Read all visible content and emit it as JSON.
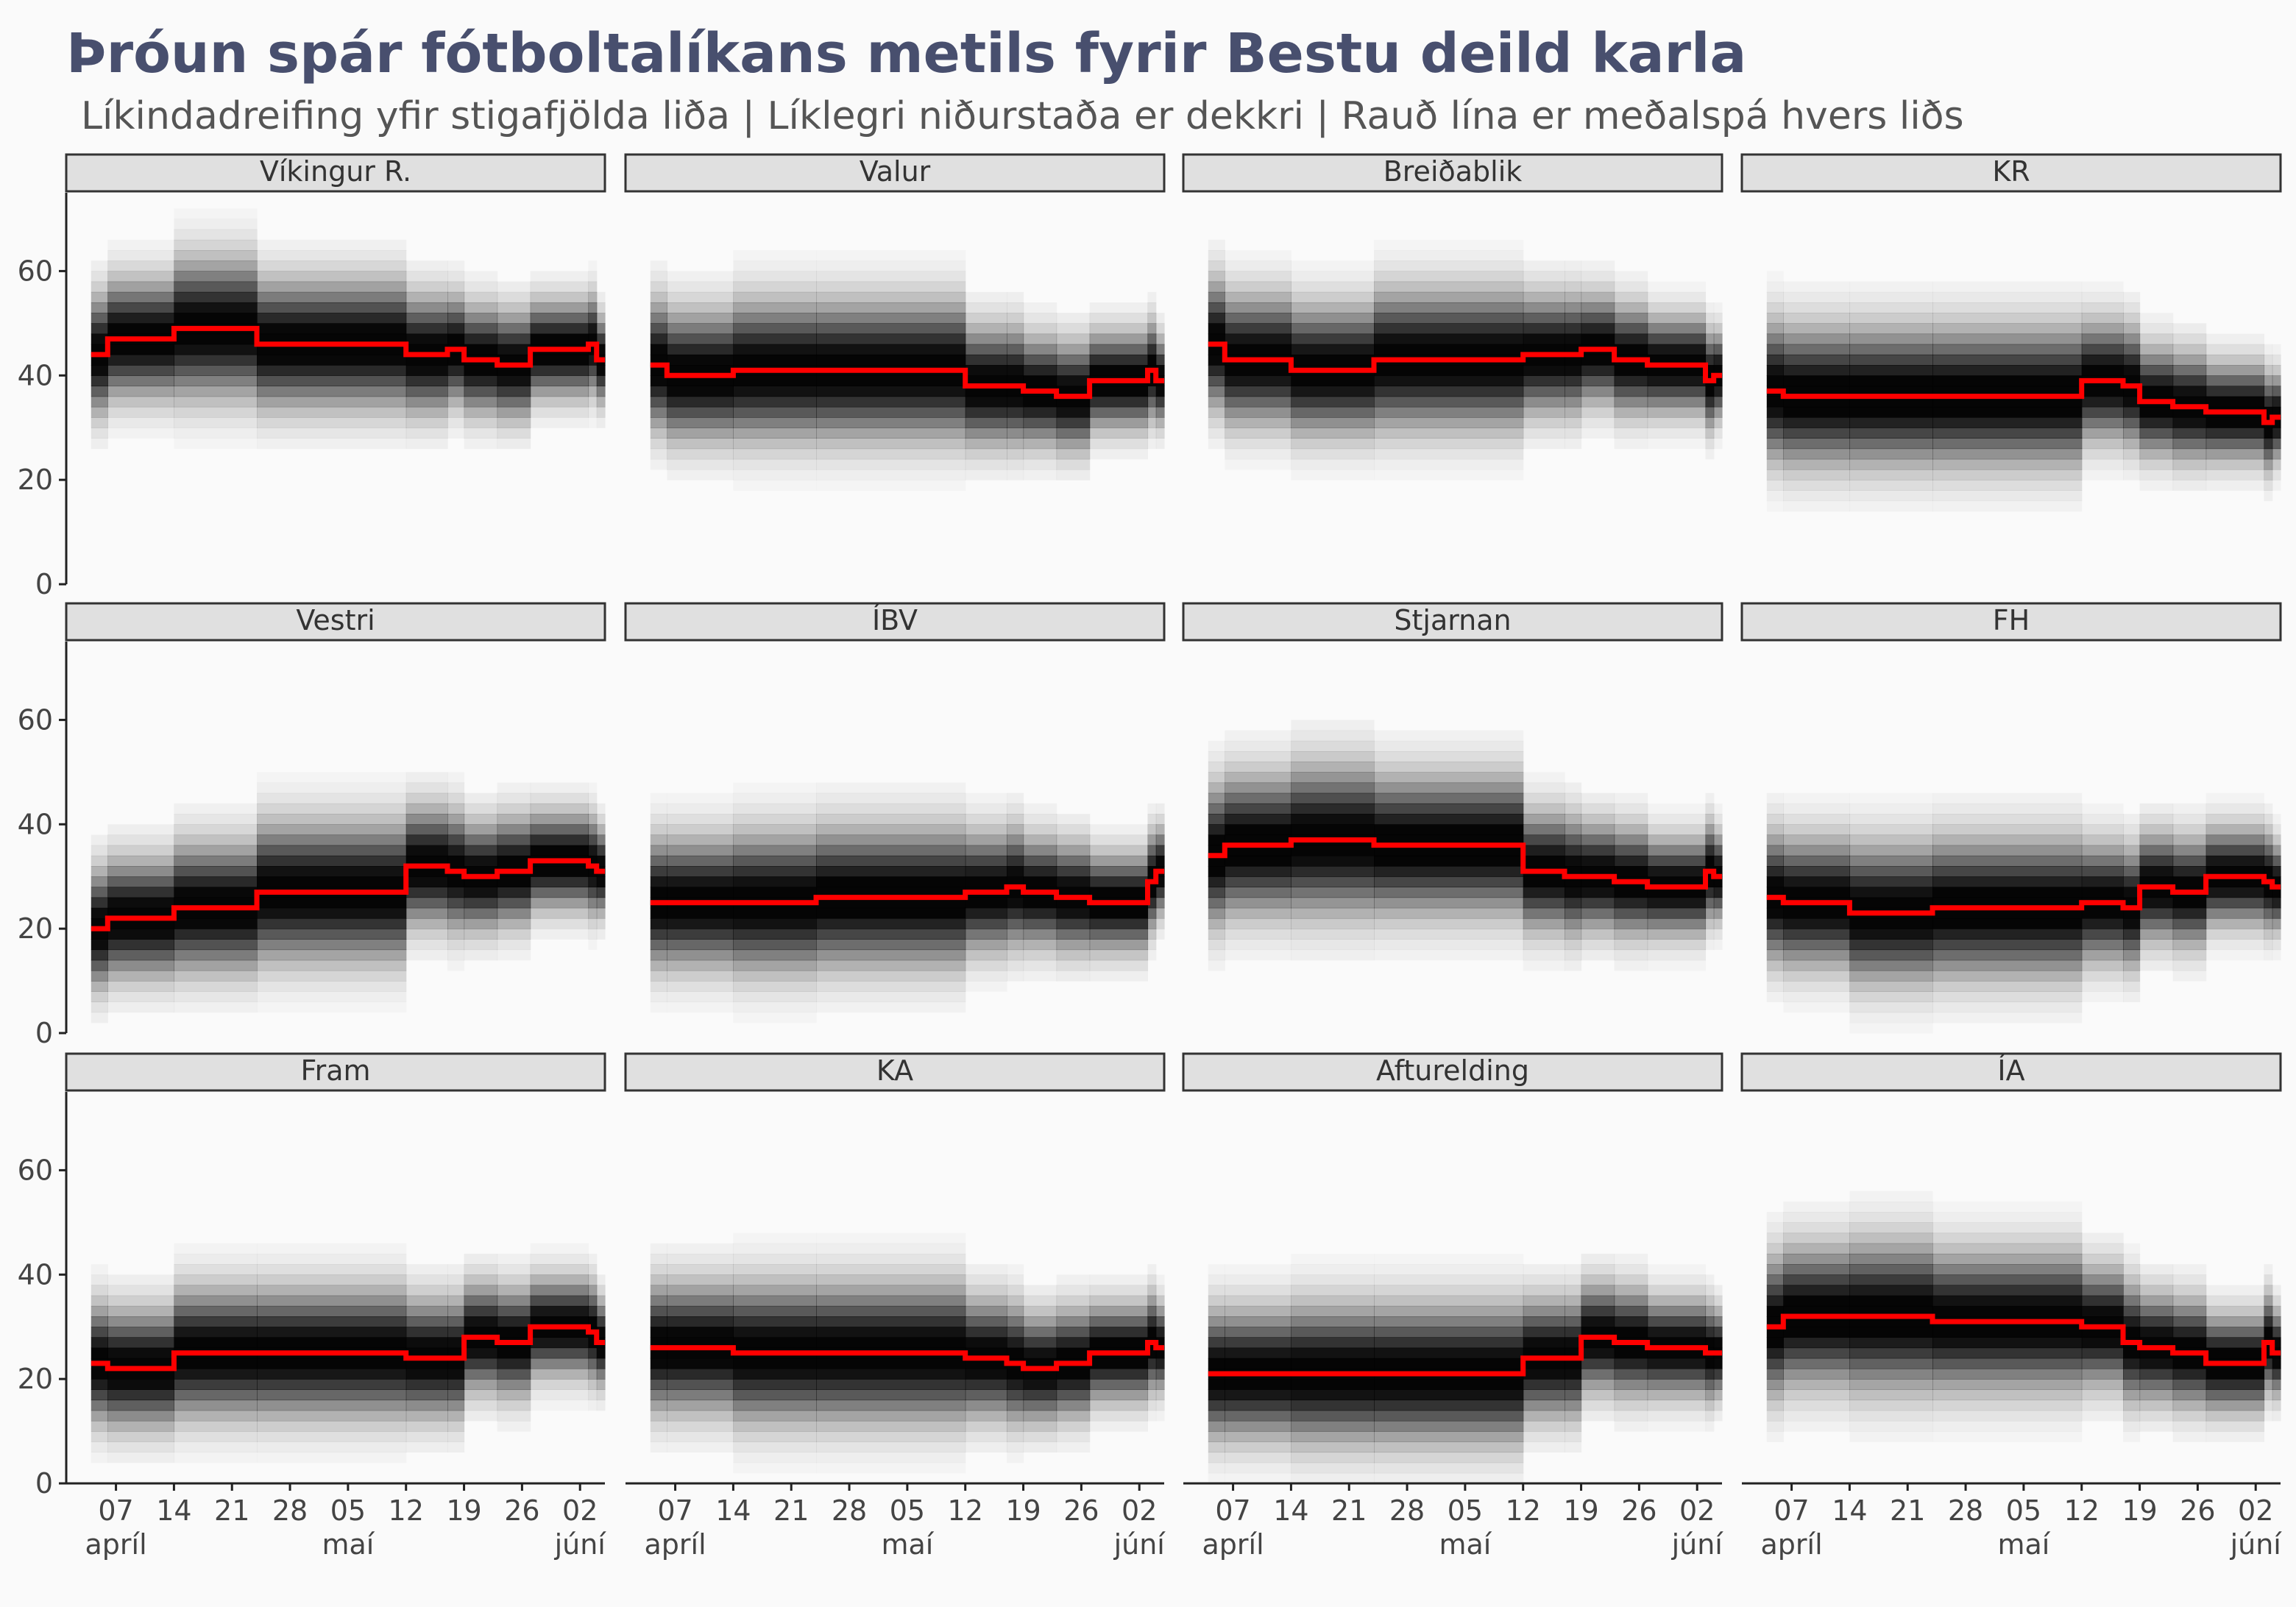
{
  "title": "Þróun spár fótboltalíkans metils fyrir Bestu deild karla",
  "subtitle": "Líkindadreifing yfir stigafjölda liða | Líklegri niðurstaða er dekkri | Rauð lína er meðalspá hvers liðs",
  "colors": {
    "background": "#fafafa",
    "mean_line": "#ff0000",
    "strip_fill": "#e0e0e0",
    "strip_border": "#333333",
    "density": "#000000"
  },
  "chart_data": {
    "type": "heatmap",
    "layout": {
      "rows": 3,
      "cols": 4,
      "shared_axes": true
    },
    "ylim": [
      0,
      75
    ],
    "y_ticks": [
      0,
      20,
      40,
      60
    ],
    "x_ticks": [
      {
        "day": 7,
        "label": "07",
        "sublabel": "apríl"
      },
      {
        "day": 14,
        "label": "14",
        "sublabel": ""
      },
      {
        "day": 21,
        "label": "21",
        "sublabel": ""
      },
      {
        "day": 28,
        "label": "28",
        "sublabel": ""
      },
      {
        "day": 35,
        "label": "05",
        "sublabel": "maí"
      },
      {
        "day": 42,
        "label": "12",
        "sublabel": ""
      },
      {
        "day": 49,
        "label": "19",
        "sublabel": ""
      },
      {
        "day": 56,
        "label": "26",
        "sublabel": ""
      },
      {
        "day": 63,
        "label": "02",
        "sublabel": "júní"
      }
    ],
    "xlim": [
      1,
      66
    ],
    "dates": [
      4,
      6,
      14,
      24,
      42,
      47,
      49,
      53,
      57,
      64,
      65
    ],
    "teams": [
      {
        "name": "Víkingur R.",
        "mean": [
          44,
          47,
          49,
          46,
          44,
          45,
          43,
          42,
          45,
          46,
          43
        ],
        "spread": [
          11,
          11,
          13,
          12,
          11,
          10,
          10,
          10,
          9,
          9,
          8
        ]
      },
      {
        "name": "Valur",
        "mean": [
          42,
          40,
          41,
          41,
          38,
          38,
          37,
          36,
          39,
          41,
          39
        ],
        "spread": [
          12,
          12,
          13,
          13,
          11,
          11,
          10,
          10,
          9,
          9,
          8
        ]
      },
      {
        "name": "Breiðablik",
        "mean": [
          46,
          43,
          41,
          43,
          44,
          44,
          45,
          43,
          42,
          39,
          40
        ],
        "spread": [
          12,
          12,
          12,
          13,
          11,
          11,
          10,
          10,
          9,
          9,
          8
        ]
      },
      {
        "name": "KR",
        "mean": [
          37,
          36,
          36,
          36,
          39,
          38,
          35,
          34,
          33,
          31,
          32
        ],
        "spread": [
          13,
          13,
          13,
          13,
          11,
          11,
          10,
          10,
          9,
          9,
          8
        ]
      },
      {
        "name": "Vestri",
        "mean": [
          20,
          22,
          24,
          27,
          32,
          31,
          30,
          31,
          33,
          32,
          31
        ],
        "spread": [
          11,
          11,
          12,
          13,
          11,
          11,
          10,
          10,
          9,
          9,
          8
        ]
      },
      {
        "name": "ÍBV",
        "mean": [
          25,
          25,
          25,
          26,
          27,
          28,
          27,
          26,
          25,
          29,
          31
        ],
        "spread": [
          12,
          12,
          13,
          13,
          11,
          11,
          10,
          10,
          9,
          9,
          8
        ]
      },
      {
        "name": "Stjarnan",
        "mean": [
          34,
          36,
          37,
          36,
          31,
          30,
          30,
          29,
          28,
          31,
          30
        ],
        "spread": [
          13,
          13,
          14,
          13,
          11,
          11,
          10,
          10,
          9,
          9,
          8
        ]
      },
      {
        "name": "FH",
        "mean": [
          26,
          25,
          23,
          24,
          25,
          24,
          28,
          27,
          30,
          29,
          28
        ],
        "spread": [
          12,
          12,
          13,
          13,
          11,
          11,
          10,
          10,
          9,
          9,
          8
        ]
      },
      {
        "name": "Fram",
        "mean": [
          23,
          22,
          25,
          25,
          24,
          24,
          28,
          27,
          30,
          29,
          27
        ],
        "spread": [
          11,
          11,
          12,
          12,
          11,
          11,
          10,
          10,
          9,
          9,
          8
        ]
      },
      {
        "name": "KA",
        "mean": [
          26,
          26,
          25,
          25,
          24,
          23,
          22,
          23,
          25,
          27,
          26
        ],
        "spread": [
          12,
          12,
          13,
          13,
          11,
          11,
          10,
          10,
          9,
          9,
          8
        ]
      },
      {
        "name": "Afturelding",
        "mean": [
          21,
          21,
          21,
          21,
          24,
          24,
          28,
          27,
          26,
          25,
          25
        ],
        "spread": [
          12,
          12,
          13,
          13,
          11,
          11,
          10,
          10,
          9,
          9,
          8
        ]
      },
      {
        "name": "ÍA",
        "mean": [
          30,
          32,
          32,
          31,
          30,
          27,
          26,
          25,
          23,
          27,
          25
        ],
        "spread": [
          13,
          13,
          14,
          13,
          11,
          11,
          10,
          10,
          9,
          9,
          8
        ]
      }
    ]
  }
}
